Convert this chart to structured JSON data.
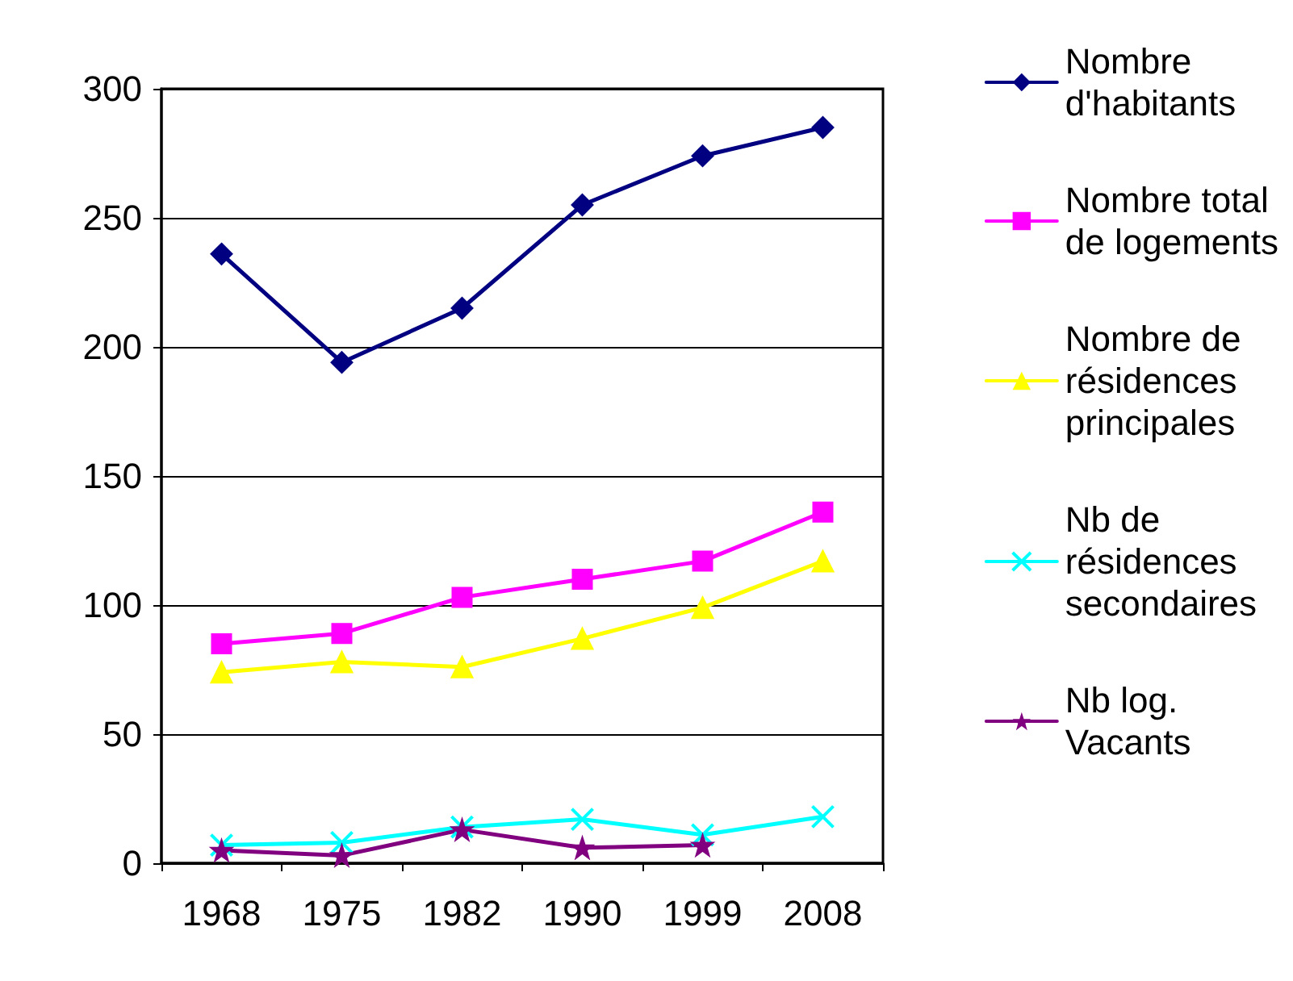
{
  "chart_data": {
    "type": "line",
    "categories": [
      "1968",
      "1975",
      "1982",
      "1990",
      "1999",
      "2008"
    ],
    "series": [
      {
        "name": "Nombre d'habitants",
        "color": "#000080",
        "marker": "diamond",
        "values": [
          236,
          194,
          215,
          255,
          274,
          285
        ]
      },
      {
        "name": "Nombre total de logements",
        "color": "#ff00ff",
        "marker": "square",
        "values": [
          85,
          89,
          103,
          110,
          117,
          136
        ]
      },
      {
        "name": "Nombre de résidences principales",
        "color": "#ffff00",
        "marker": "triangle",
        "values": [
          74,
          78,
          76,
          87,
          99,
          117
        ]
      },
      {
        "name": "Nb de résidences secondaires",
        "color": "#00ffff",
        "marker": "cross",
        "values": [
          7,
          8,
          14,
          17,
          11,
          18
        ]
      },
      {
        "name": "Nb log. Vacants",
        "color": "#800080",
        "marker": "star",
        "values": [
          5,
          3,
          13,
          6,
          7,
          null
        ]
      }
    ],
    "ylim": [
      0,
      300
    ],
    "yticks": [
      0,
      50,
      100,
      150,
      200,
      250,
      300
    ],
    "grid": "y",
    "legend": "right"
  }
}
